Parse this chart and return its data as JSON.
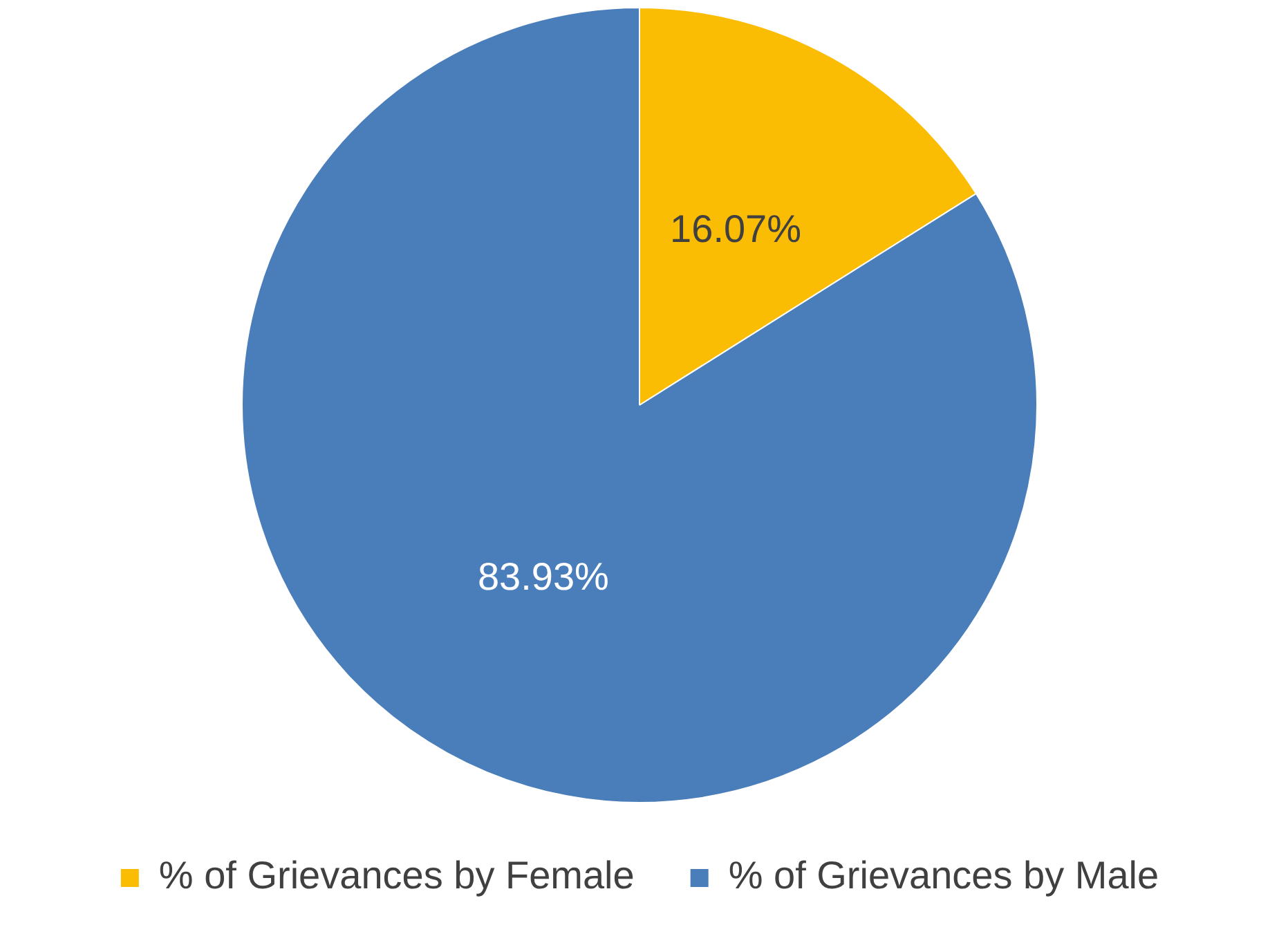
{
  "chart_data": {
    "type": "pie",
    "categories": [
      "% of Grievances by Female",
      "% of Grievances by Male"
    ],
    "values": [
      16.07,
      83.93
    ],
    "colors": [
      "#fbbc04",
      "#4a7ebb"
    ],
    "value_labels": [
      "16.07%",
      "83.93%"
    ],
    "legend": "bottom"
  }
}
